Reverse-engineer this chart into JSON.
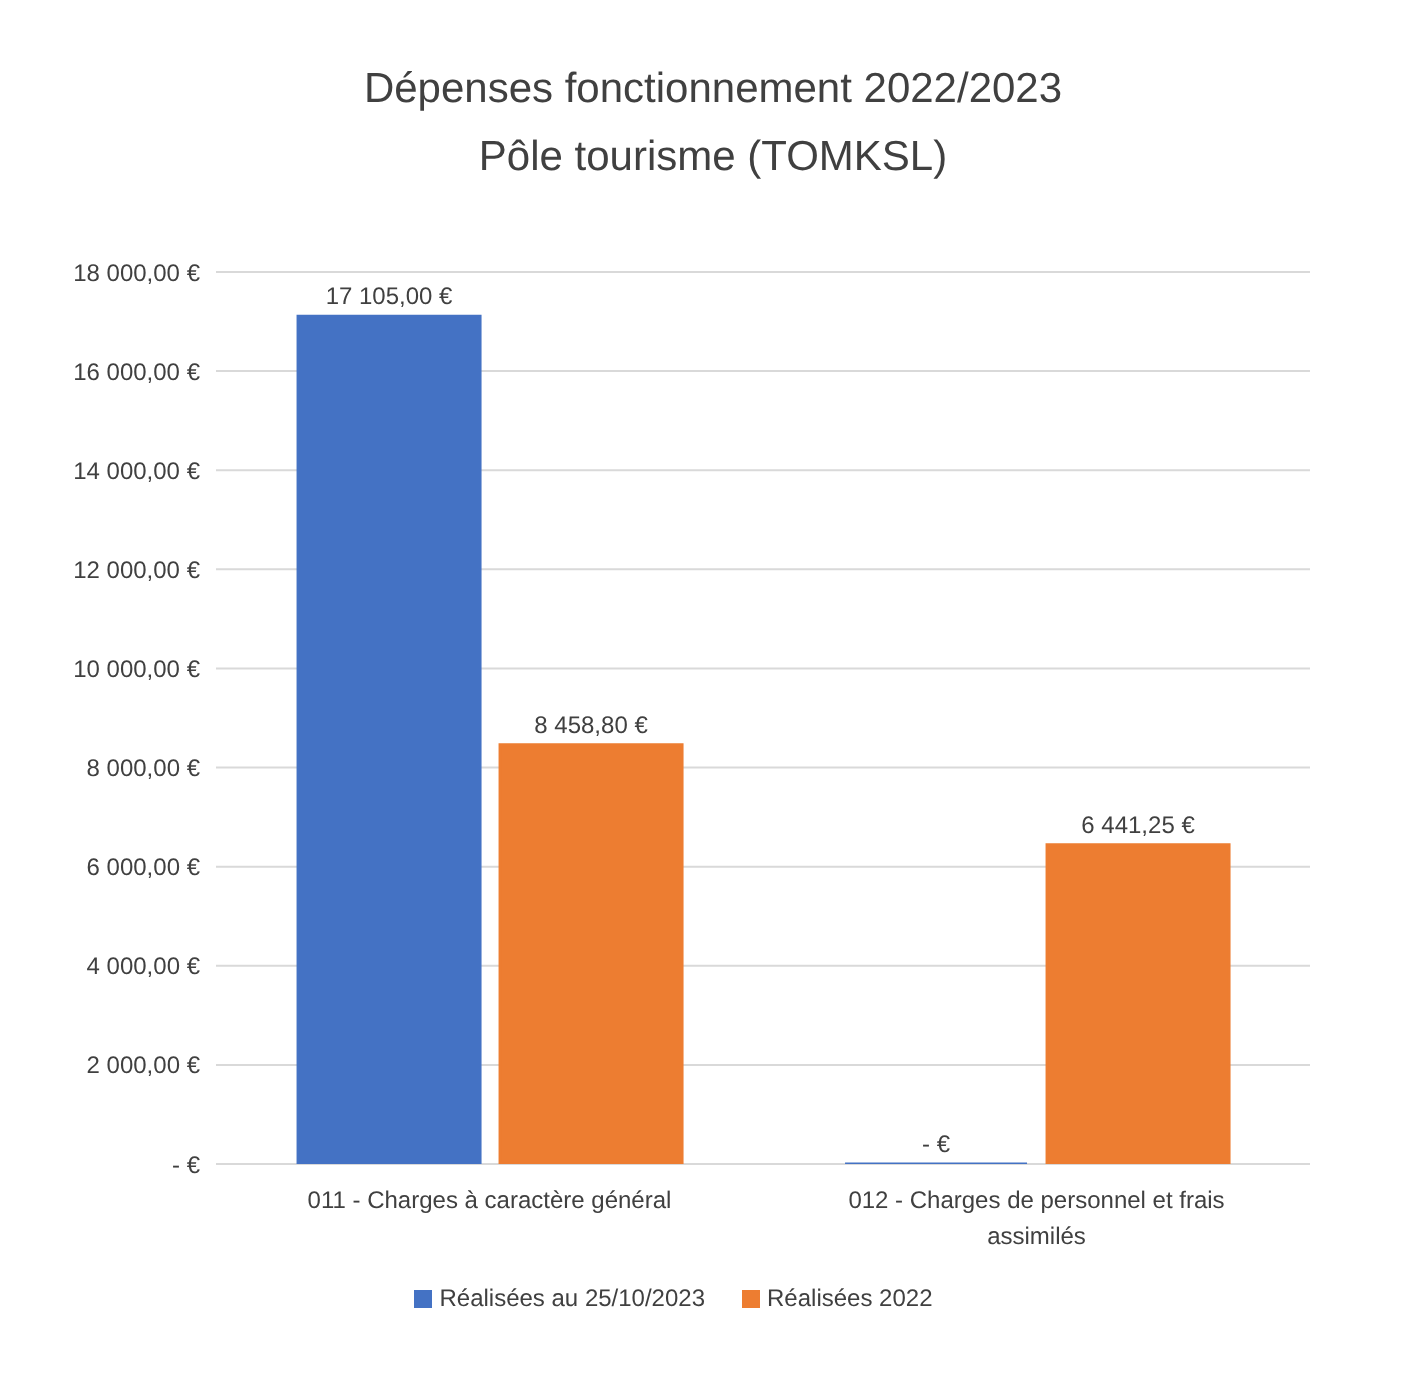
{
  "chart_data": {
    "type": "bar",
    "title": "Dépenses fonctionnement 2022/2023",
    "subtitle": "Pôle tourisme (TOMKSL)",
    "categories": [
      "011 - Charges à caractère général",
      "012 - Charges de personnel et frais assimilés"
    ],
    "series": [
      {
        "name": "Réalisées au 25/10/2023",
        "color": "#4472c4",
        "values": [
          17105,
          0
        ],
        "value_labels": [
          "17 105,00 €",
          "- €"
        ]
      },
      {
        "name": "Réalisées 2022",
        "color": "#ed7d31",
        "values": [
          8458.8,
          6441.25
        ],
        "value_labels": [
          "8 458,80 €",
          "6 441,25 €"
        ]
      }
    ],
    "ylim": [
      0,
      18000
    ],
    "yticks": [
      {
        "value": 0,
        "label": "- €"
      },
      {
        "value": 2000,
        "label": "2 000,00 €"
      },
      {
        "value": 4000,
        "label": "4 000,00 €"
      },
      {
        "value": 6000,
        "label": "6 000,00 €"
      },
      {
        "value": 8000,
        "label": "8 000,00 €"
      },
      {
        "value": 10000,
        "label": "10 000,00 €"
      },
      {
        "value": 12000,
        "label": "12 000,00 €"
      },
      {
        "value": 14000,
        "label": "14 000,00 €"
      },
      {
        "value": 16000,
        "label": "16 000,00 €"
      },
      {
        "value": 18000,
        "label": "18 000,00 €"
      }
    ],
    "grid": "y",
    "legend": "bottom"
  }
}
